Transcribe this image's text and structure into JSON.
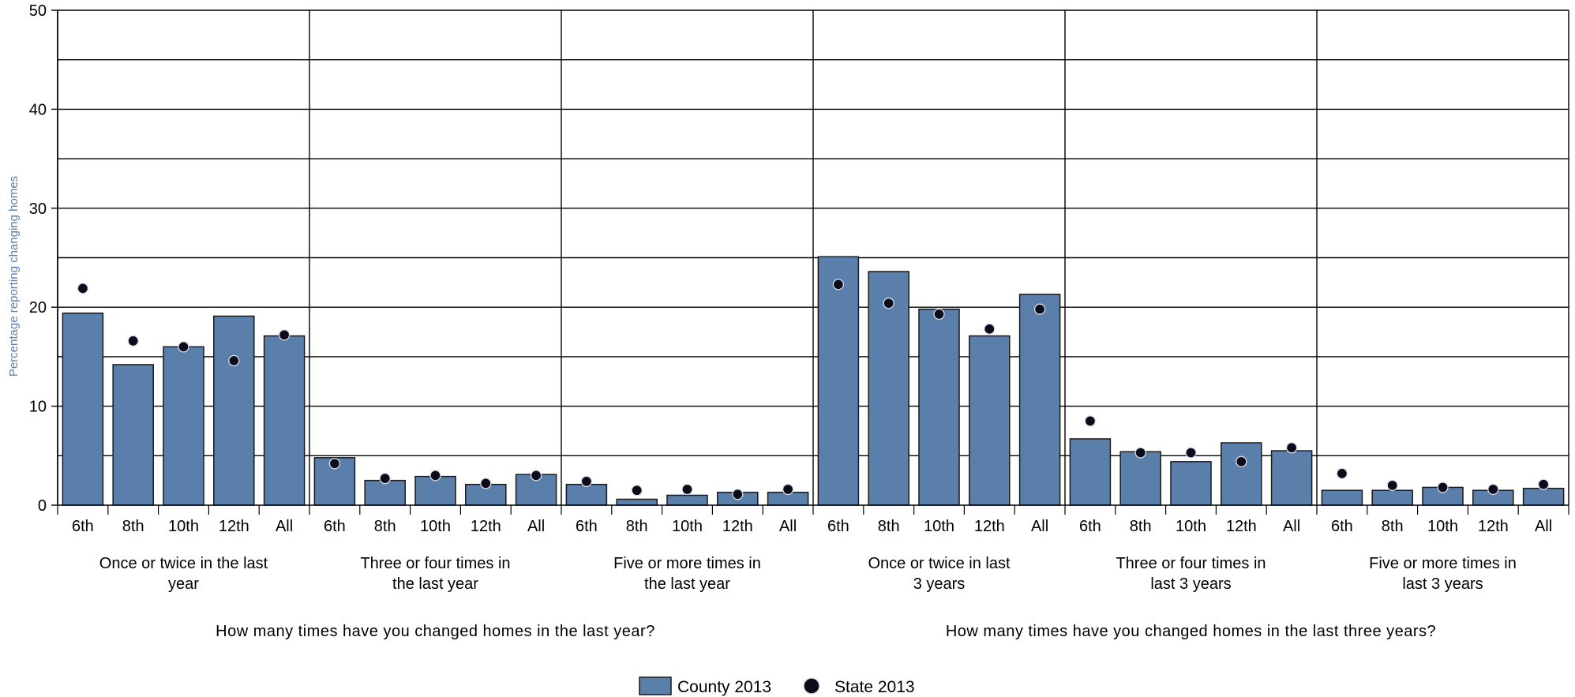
{
  "chart_data": {
    "type": "bar",
    "ylabel": "Percentage reporting changing homes",
    "ylim": [
      0,
      50
    ],
    "yticks": [
      0,
      10,
      20,
      30,
      40,
      50
    ],
    "grid": true,
    "colors": {
      "county_fill": "#5b7fab",
      "county_stroke": "#1a1a1a",
      "state_dot": "#0b0b1a",
      "ylabel": "#5b7fb0"
    },
    "questions": [
      "How many times have you changed homes in the last year?",
      "How many times have you changed homes in the last three years?"
    ],
    "groups": [
      {
        "label": [
          "Once or twice in the last",
          "year"
        ],
        "question": 0
      },
      {
        "label": [
          "Three or four times in",
          "the last year"
        ],
        "question": 0
      },
      {
        "label": [
          "Five or more times in",
          "the last year"
        ],
        "question": 0
      },
      {
        "label": [
          "Once or twice in last",
          "3 years"
        ],
        "question": 1
      },
      {
        "label": [
          "Three or four times in",
          "last 3 years"
        ],
        "question": 1
      },
      {
        "label": [
          "Five or more times in",
          "last 3 years"
        ],
        "question": 1
      }
    ],
    "categories": [
      "6th",
      "8th",
      "10th",
      "12th",
      "All"
    ],
    "series": [
      {
        "name": "County 2013",
        "mark": "bar",
        "values": [
          [
            19.4,
            14.2,
            16.0,
            19.1,
            17.1
          ],
          [
            4.8,
            2.5,
            2.9,
            2.1,
            3.1
          ],
          [
            2.1,
            0.6,
            1.0,
            1.3,
            1.3
          ],
          [
            25.1,
            23.6,
            19.8,
            17.1,
            21.3
          ],
          [
            6.7,
            5.4,
            4.4,
            6.3,
            5.5
          ],
          [
            1.5,
            1.5,
            1.8,
            1.5,
            1.7
          ]
        ]
      },
      {
        "name": "State 2013",
        "mark": "dot",
        "values": [
          [
            21.9,
            16.6,
            16.0,
            14.6,
            17.2
          ],
          [
            4.2,
            2.7,
            3.0,
            2.2,
            3.0
          ],
          [
            2.4,
            1.5,
            1.6,
            1.1,
            1.6
          ],
          [
            22.3,
            20.4,
            19.3,
            17.8,
            19.8
          ],
          [
            8.5,
            5.3,
            5.3,
            4.4,
            5.8
          ],
          [
            3.2,
            2.0,
            1.8,
            1.6,
            2.1
          ]
        ]
      }
    ],
    "legend": {
      "position": "bottom-center",
      "items": [
        "County 2013",
        "State 2013"
      ]
    }
  }
}
